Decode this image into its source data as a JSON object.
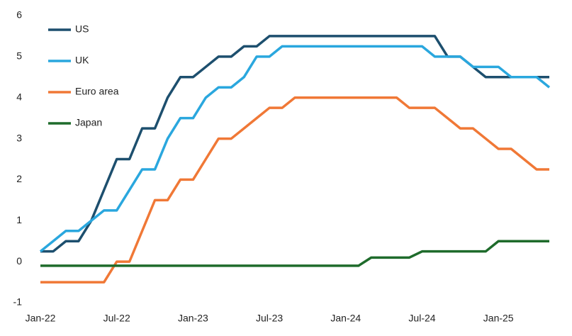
{
  "chart_data": {
    "type": "line",
    "categories": [
      "Jan-22",
      null,
      null,
      null,
      null,
      null,
      "Jul-22",
      null,
      null,
      null,
      null,
      null,
      "Jan-23",
      null,
      null,
      null,
      null,
      null,
      "Jul-23",
      null,
      null,
      null,
      null,
      null,
      "Jan-24",
      null,
      null,
      null,
      null,
      null,
      "Jul-24",
      null,
      null,
      null,
      null,
      null,
      "Jan-25",
      null,
      null,
      null,
      null
    ],
    "series": [
      {
        "name": "US",
        "color": "#1d4f6e",
        "values": [
          0.25,
          0.25,
          0.5,
          0.5,
          1,
          1.75,
          2.5,
          2.5,
          3.25,
          3.25,
          4,
          4.5,
          4.5,
          4.75,
          5,
          5,
          5.25,
          5.25,
          5.5,
          5.5,
          5.5,
          5.5,
          5.5,
          5.5,
          5.5,
          5.5,
          5.5,
          5.5,
          5.5,
          5.5,
          5.5,
          5.5,
          5,
          5,
          4.75,
          4.5,
          4.5,
          4.5,
          4.5,
          4.5,
          4.5
        ]
      },
      {
        "name": "UK",
        "color": "#2aa7de",
        "values": [
          0.25,
          0.5,
          0.75,
          0.75,
          1,
          1.25,
          1.25,
          1.75,
          2.25,
          2.25,
          3,
          3.5,
          3.5,
          4,
          4.25,
          4.25,
          4.5,
          5,
          5,
          5.25,
          5.25,
          5.25,
          5.25,
          5.25,
          5.25,
          5.25,
          5.25,
          5.25,
          5.25,
          5.25,
          5.25,
          5,
          5,
          5,
          4.75,
          4.75,
          4.75,
          4.5,
          4.5,
          4.5,
          4.25
        ]
      },
      {
        "name": "Euro area",
        "color": "#f07836",
        "values": [
          -0.5,
          -0.5,
          -0.5,
          -0.5,
          -0.5,
          -0.5,
          0,
          0,
          0.75,
          1.5,
          1.5,
          2,
          2,
          2.5,
          3,
          3,
          3.25,
          3.5,
          3.75,
          3.75,
          4,
          4,
          4,
          4,
          4,
          4,
          4,
          4,
          4,
          3.75,
          3.75,
          3.75,
          3.5,
          3.25,
          3.25,
          3,
          2.75,
          2.75,
          2.5,
          2.25,
          2.25
        ]
      },
      {
        "name": "Japan",
        "color": "#1e6b2b",
        "values": [
          -0.1,
          -0.1,
          -0.1,
          -0.1,
          -0.1,
          -0.1,
          -0.1,
          -0.1,
          -0.1,
          -0.1,
          -0.1,
          -0.1,
          -0.1,
          -0.1,
          -0.1,
          -0.1,
          -0.1,
          -0.1,
          -0.1,
          -0.1,
          -0.1,
          -0.1,
          -0.1,
          -0.1,
          -0.1,
          -0.1,
          0.1,
          0.1,
          0.1,
          0.1,
          0.25,
          0.25,
          0.25,
          0.25,
          0.25,
          0.25,
          0.5,
          0.5,
          0.5,
          0.5,
          0.5
        ]
      }
    ],
    "ylim": [
      -1,
      6
    ],
    "yticks": [
      -1,
      0,
      1,
      2,
      3,
      4,
      5,
      6
    ],
    "grid": false,
    "legend": "upper left"
  }
}
